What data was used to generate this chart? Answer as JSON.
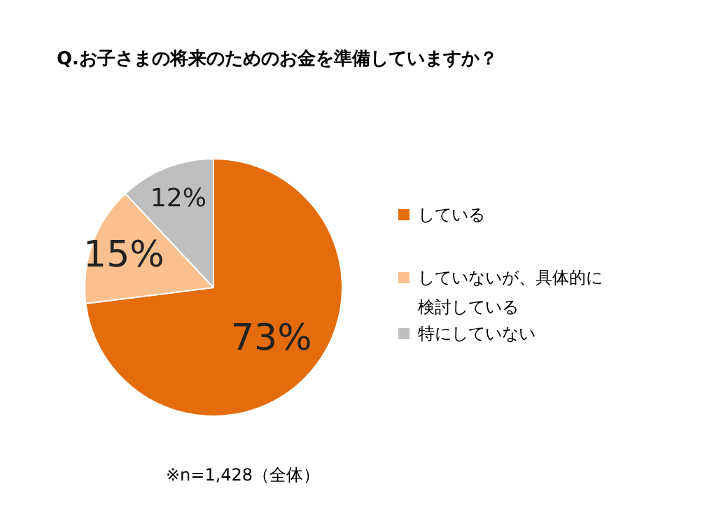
{
  "chart_data": {
    "type": "pie",
    "title": "Q.お子さまの将来のためのお金を準備していますか？",
    "categories": [
      "している",
      "していないが、具体的に検討している",
      "特にしていない"
    ],
    "values": [
      73,
      15,
      12
    ],
    "value_labels": [
      "73%",
      "15%",
      "12%"
    ],
    "colors": [
      "#e46c0a",
      "#fac08f",
      "#bfbfbf"
    ],
    "legend": "right",
    "annotations": [
      "※n=1,428（全体）"
    ]
  }
}
